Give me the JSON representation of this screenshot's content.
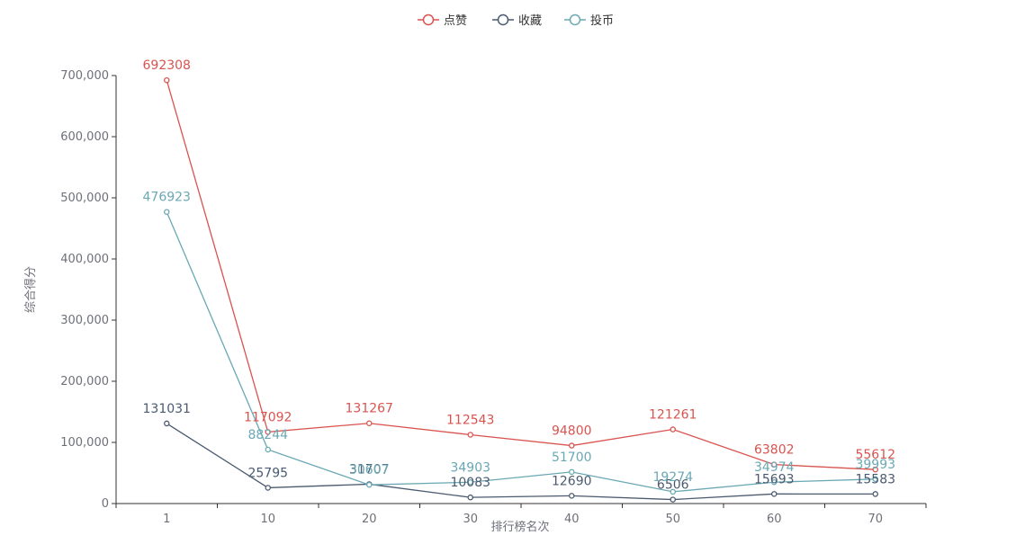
{
  "chart_data": {
    "type": "line",
    "title": "",
    "xlabel": "排行榜名次",
    "ylabel": "综合得分",
    "categories": [
      "1",
      "10",
      "20",
      "30",
      "40",
      "50",
      "60",
      "70"
    ],
    "ylim": [
      0,
      700000
    ],
    "yticks": [
      0,
      100000,
      200000,
      300000,
      400000,
      500000,
      600000,
      700000
    ],
    "ytick_labels": [
      "0",
      "100,000",
      "200,000",
      "300,000",
      "400,000",
      "500,000",
      "600,000",
      "700,000"
    ],
    "legend_position": "top-center",
    "grid": false,
    "series": [
      {
        "name": "点赞",
        "color": "#d9534f",
        "values": [
          692308,
          117092,
          131267,
          112543,
          94800,
          121261,
          63802,
          55612
        ]
      },
      {
        "name": "收藏",
        "color": "#4a5a70",
        "values": [
          131031,
          25795,
          31707,
          10083,
          12690,
          6506,
          15693,
          15583
        ]
      },
      {
        "name": "投币",
        "color": "#6aa8b4",
        "values": [
          476923,
          88244,
          30607,
          34903,
          51700,
          19274,
          34974,
          39993
        ]
      }
    ]
  }
}
